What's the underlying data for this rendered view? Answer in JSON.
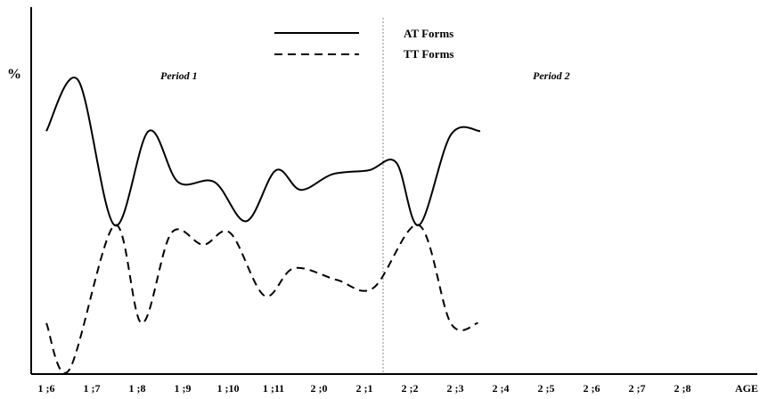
{
  "chart_data": {
    "type": "line",
    "x_categories": [
      "1 ;6",
      "1 ;7",
      "1 ;8",
      "1 ;9",
      "1 ;10",
      "1 ;11",
      "2 ;0",
      "2 ;1",
      "2 ;2",
      "2 ;3",
      "2 ;4",
      "2 ;5",
      "2 ;6",
      "2 ;7",
      "2 ;8"
    ],
    "xlabel": "AGE",
    "ylabel": "%",
    "annotations": [
      "Period 1",
      "Period 2"
    ],
    "series": [
      {
        "name": "AT Forms",
        "line_style": "solid",
        "points": [
          [
            0,
            62
          ],
          [
            0.7,
            75
          ],
          [
            1.5,
            38
          ],
          [
            2.25,
            62
          ],
          [
            2.9,
            49
          ],
          [
            3.7,
            49
          ],
          [
            4.4,
            39
          ],
          [
            5.05,
            52
          ],
          [
            5.6,
            47
          ],
          [
            6.3,
            51
          ],
          [
            7.1,
            52
          ],
          [
            7.7,
            54
          ],
          [
            8.2,
            38
          ],
          [
            8.9,
            61
          ],
          [
            9.55,
            62
          ]
        ]
      },
      {
        "name": "TT Forms",
        "line_style": "dashed",
        "points": [
          [
            0,
            13
          ],
          [
            0.5,
            1
          ],
          [
            1.5,
            38
          ],
          [
            2.1,
            13
          ],
          [
            2.75,
            36
          ],
          [
            3.45,
            33
          ],
          [
            4.05,
            36
          ],
          [
            4.8,
            20
          ],
          [
            5.45,
            27
          ],
          [
            6.4,
            24
          ],
          [
            7.2,
            22
          ],
          [
            8.2,
            38
          ],
          [
            8.9,
            13
          ],
          [
            9.5,
            13
          ]
        ]
      }
    ]
  }
}
